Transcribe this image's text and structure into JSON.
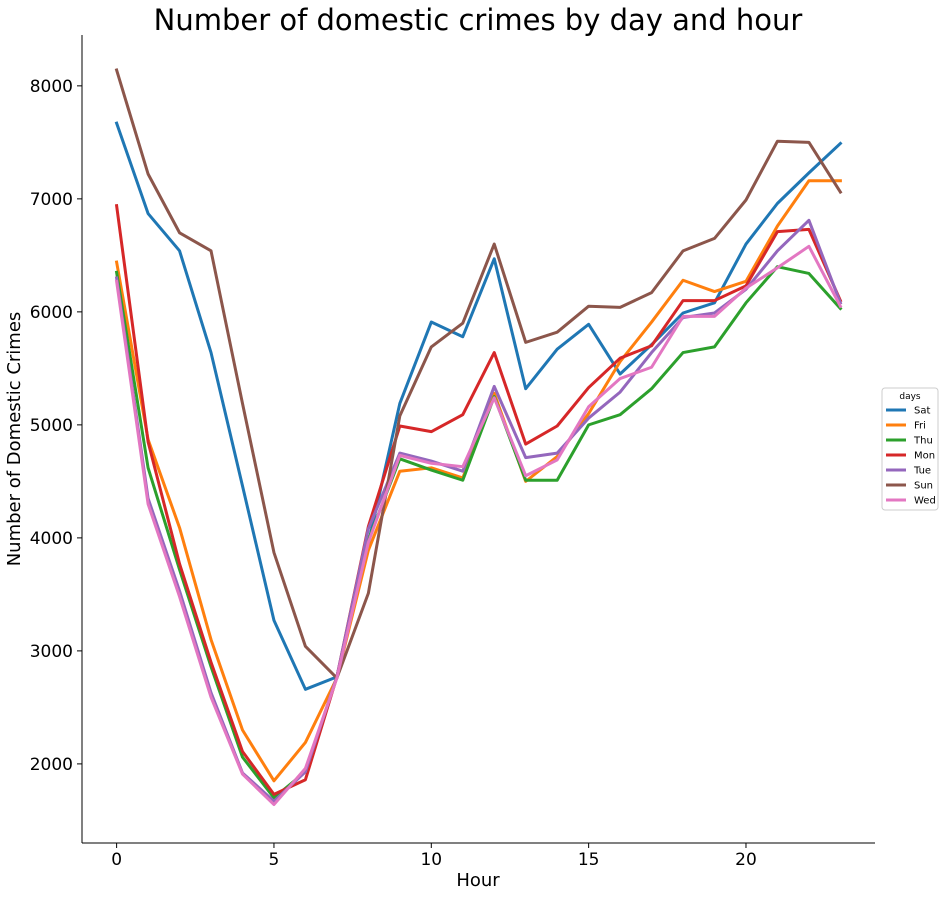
{
  "chart_data": {
    "type": "line",
    "title": "Number of domestic crimes by day and hour",
    "xlabel": "Hour",
    "ylabel": "Number of Domestic Crimes",
    "xlim": [
      -1.1,
      24.1
    ],
    "ylim": [
      1300,
      8450
    ],
    "xticks": [
      0,
      5,
      10,
      15,
      20
    ],
    "yticks": [
      2000,
      3000,
      4000,
      5000,
      6000,
      7000,
      8000
    ],
    "grid": false,
    "legend": {
      "title": "days",
      "placement": "right"
    },
    "x": [
      0,
      1,
      2,
      3,
      4,
      5,
      6,
      7,
      8,
      9,
      10,
      11,
      12,
      13,
      14,
      15,
      16,
      17,
      18,
      19,
      20,
      21,
      22,
      23
    ],
    "series": [
      {
        "name": "Sat",
        "color": "#1f77b4",
        "values": [
          7670,
          6870,
          6540,
          5640,
          4460,
          3270,
          2660,
          2770,
          3950,
          5190,
          5910,
          5780,
          6470,
          5320,
          5670,
          5890,
          5450,
          5710,
          5990,
          6080,
          6600,
          6960,
          7230,
          7490
        ]
      },
      {
        "name": "Fri",
        "color": "#ff7f0e",
        "values": [
          6440,
          4870,
          4090,
          3100,
          2300,
          1850,
          2190,
          2760,
          3890,
          4590,
          4620,
          4530,
          5280,
          4500,
          4720,
          5100,
          5560,
          5910,
          6280,
          6180,
          6270,
          6760,
          7160,
          7160
        ]
      },
      {
        "name": "Thu",
        "color": "#2ca02c",
        "values": [
          6350,
          4620,
          3720,
          2860,
          2060,
          1700,
          1930,
          2770,
          3980,
          4700,
          4600,
          4510,
          5250,
          4510,
          4510,
          5000,
          5090,
          5320,
          5640,
          5690,
          6080,
          6400,
          6340,
          6030
        ]
      },
      {
        "name": "Mon",
        "color": "#d62728",
        "values": [
          6940,
          4850,
          3770,
          2900,
          2110,
          1730,
          1860,
          2770,
          4100,
          4990,
          4940,
          5090,
          5640,
          4830,
          4990,
          5330,
          5590,
          5700,
          6100,
          6100,
          6230,
          6710,
          6730,
          6100
        ]
      },
      {
        "name": "Tue",
        "color": "#9467bd",
        "values": [
          6300,
          4350,
          3530,
          2630,
          1920,
          1670,
          1930,
          2770,
          4080,
          4750,
          4680,
          4590,
          5340,
          4710,
          4750,
          5060,
          5290,
          5640,
          5950,
          5990,
          6200,
          6540,
          6810,
          6080
        ]
      },
      {
        "name": "Sun",
        "color": "#8c564b",
        "values": [
          8140,
          7220,
          6700,
          6540,
          5190,
          3870,
          3040,
          2760,
          3510,
          5080,
          5690,
          5900,
          6600,
          5730,
          5820,
          6050,
          6040,
          6170,
          6540,
          6650,
          6990,
          7510,
          7500,
          7060
        ]
      },
      {
        "name": "Wed",
        "color": "#e377c2",
        "values": [
          6270,
          4300,
          3480,
          2590,
          1910,
          1640,
          1960,
          2760,
          3960,
          4730,
          4660,
          4630,
          5240,
          4550,
          4690,
          5160,
          5410,
          5510,
          5960,
          5960,
          6210,
          6390,
          6580,
          6050
        ]
      }
    ]
  }
}
